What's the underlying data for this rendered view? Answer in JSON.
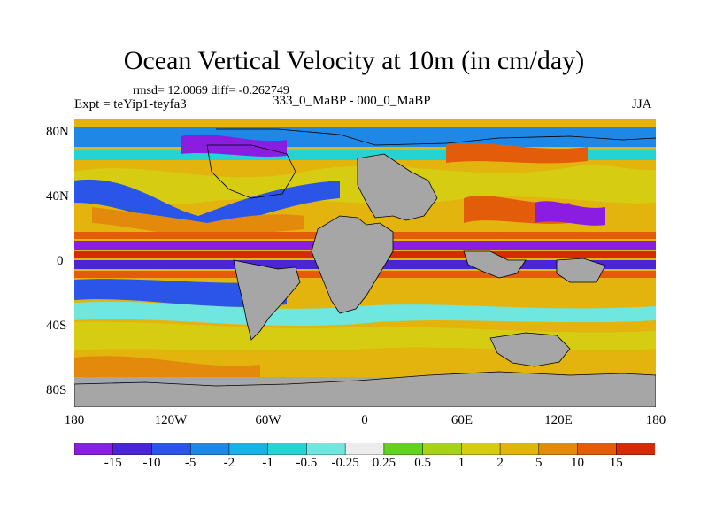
{
  "title": "Ocean Vertical Velocity at 10m (in cm/day)",
  "stats": "rmsd= 12.0069 diff= -0.262749",
  "experiment": "Expt = teYip1-teyfa3",
  "difference_label": "333_0_MaBP - 000_0_MaBP",
  "season": "JJA",
  "lat_labels": [
    "80N",
    "40N",
    "0",
    "40S",
    "80S"
  ],
  "lon_labels": [
    "180",
    "120W",
    "60W",
    "0",
    "60E",
    "120E",
    "180"
  ],
  "colorbar": {
    "labels": [
      "-15",
      "-10",
      "-5",
      "-2",
      "-1",
      "-0.5",
      "-0.25",
      "0.25",
      "0.5",
      "1",
      "2",
      "5",
      "10",
      "15"
    ],
    "colors": [
      "#8a1de0",
      "#4a25d6",
      "#2a55e8",
      "#1f88e6",
      "#19b2e6",
      "#25d4d2",
      "#6fe6de",
      "#ececec",
      "#5fd320",
      "#a6d21a",
      "#d6cc12",
      "#e3b40e",
      "#e38a0c",
      "#e35c0a",
      "#d42a08"
    ]
  },
  "colors": {
    "land": "#a6a6a6",
    "coastline": "#000000"
  }
}
